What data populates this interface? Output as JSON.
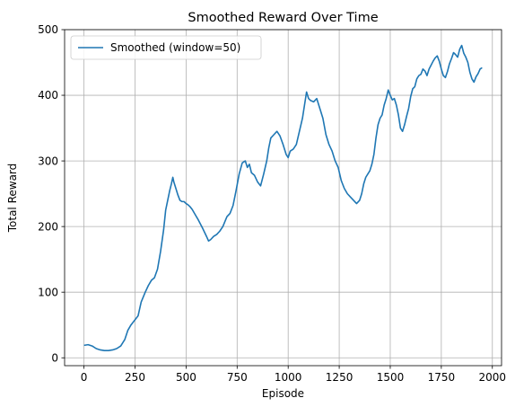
{
  "chart_data": {
    "type": "line",
    "title": "Smoothed Reward Over Time",
    "xlabel": "Episode",
    "ylabel": "Total Reward",
    "xlim": [
      -95,
      2045
    ],
    "ylim": [
      -12,
      500
    ],
    "xticks": [
      0,
      250,
      500,
      750,
      1000,
      1250,
      1500,
      1750,
      2000
    ],
    "yticks": [
      0,
      100,
      200,
      300,
      400,
      500
    ],
    "grid": true,
    "legend_position": "top-left",
    "series": [
      {
        "name": "Smoothed (window=50)",
        "color": "#1f77b4",
        "x": [
          0,
          20,
          40,
          60,
          80,
          100,
          120,
          140,
          160,
          180,
          200,
          215,
          230,
          250,
          265,
          280,
          300,
          315,
          330,
          345,
          360,
          375,
          390,
          400,
          410,
          420,
          428,
          435,
          440,
          450,
          460,
          470,
          480,
          490,
          500,
          510,
          520,
          530,
          545,
          560,
          580,
          600,
          610,
          620,
          635,
          650,
          665,
          680,
          700,
          715,
          730,
          745,
          760,
          775,
          790,
          800,
          810,
          820,
          835,
          850,
          865,
          880,
          895,
          905,
          915,
          930,
          945,
          960,
          975,
          990,
          1000,
          1010,
          1025,
          1040,
          1055,
          1070,
          1080,
          1090,
          1100,
          1110,
          1125,
          1140,
          1155,
          1170,
          1185,
          1200,
          1215,
          1230,
          1245,
          1260,
          1275,
          1290,
          1305,
          1320,
          1335,
          1350,
          1360,
          1370,
          1380,
          1390,
          1400,
          1410,
          1420,
          1430,
          1440,
          1450,
          1460,
          1470,
          1480,
          1490,
          1500,
          1510,
          1520,
          1530,
          1540,
          1550,
          1560,
          1570,
          1580,
          1590,
          1600,
          1610,
          1620,
          1630,
          1640,
          1650,
          1660,
          1670,
          1680,
          1690,
          1700,
          1710,
          1720,
          1730,
          1740,
          1750,
          1760,
          1770,
          1780,
          1790,
          1800,
          1810,
          1820,
          1830,
          1840,
          1850,
          1860,
          1870,
          1880,
          1890,
          1900,
          1910,
          1920,
          1930,
          1940,
          1950
        ],
        "y": [
          19,
          20,
          18,
          14,
          12,
          11,
          11,
          12,
          14,
          18,
          28,
          42,
          50,
          58,
          64,
          85,
          100,
          110,
          118,
          122,
          135,
          162,
          195,
          225,
          240,
          255,
          265,
          275,
          268,
          258,
          248,
          240,
          238,
          238,
          235,
          233,
          230,
          226,
          218,
          210,
          198,
          185,
          178,
          180,
          185,
          188,
          193,
          200,
          215,
          220,
          232,
          255,
          280,
          297,
          300,
          290,
          295,
          282,
          278,
          268,
          262,
          280,
          300,
          320,
          335,
          340,
          345,
          338,
          325,
          310,
          305,
          315,
          318,
          325,
          345,
          365,
          385,
          405,
          395,
          392,
          390,
          395,
          380,
          365,
          340,
          325,
          315,
          300,
          290,
          270,
          258,
          250,
          245,
          240,
          235,
          240,
          250,
          265,
          275,
          280,
          285,
          295,
          310,
          335,
          355,
          365,
          370,
          385,
          395,
          408,
          400,
          393,
          395,
          385,
          370,
          350,
          345,
          355,
          368,
          380,
          398,
          410,
          413,
          425,
          430,
          432,
          440,
          437,
          430,
          440,
          446,
          452,
          457,
          460,
          452,
          440,
          430,
          427,
          436,
          448,
          456,
          465,
          462,
          458,
          470,
          476,
          464,
          458,
          450,
          435,
          425,
          420,
          428,
          433,
          440,
          442
        ]
      }
    ]
  }
}
